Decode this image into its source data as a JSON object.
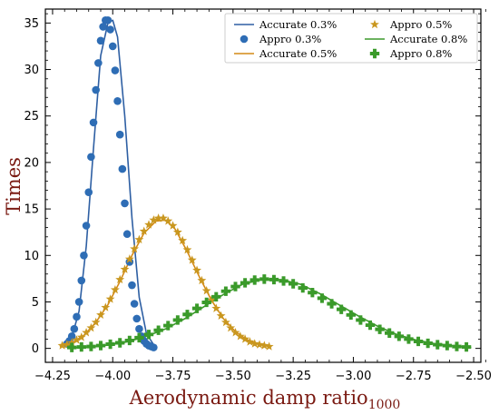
{
  "chart_data": {
    "type": "line",
    "title": "",
    "xlabel": "Aerodynamic damp ratio",
    "xlabel_subscript": "1000",
    "ylabel": "Times",
    "xlim": [
      -4.28,
      -2.47
    ],
    "ylim": [
      -1.5,
      36.5
    ],
    "xticks": [
      -4.25,
      -4.0,
      -3.75,
      -3.5,
      -3.25,
      -3.0,
      -2.75,
      -2.5
    ],
    "xtick_labels": [
      "−4.25",
      "−4.00",
      "−3.75",
      "−3.50",
      "−3.25",
      "−3.00",
      "−2.75",
      "−2.50"
    ],
    "yticks": [
      0,
      5,
      10,
      15,
      20,
      25,
      30,
      35
    ],
    "ytick_labels": [
      "0",
      "5",
      "10",
      "15",
      "20",
      "25",
      "30",
      "35"
    ],
    "grid": false,
    "legend_position": "top-right",
    "legend_columns": 2,
    "series": [
      {
        "name": "Accurate 0.3%",
        "kind": "line",
        "color": "#2e5fa3",
        "x": [
          -4.2,
          -4.17,
          -4.14,
          -4.11,
          -4.08,
          -4.05,
          -4.02,
          -4.0,
          -3.98,
          -3.95,
          -3.92,
          -3.89,
          -3.86,
          -3.83
        ],
        "y": [
          0.3,
          1.2,
          4.0,
          11.0,
          21.5,
          31.5,
          35.0,
          35.3,
          33.5,
          25.0,
          14.0,
          5.5,
          1.6,
          0.4
        ]
      },
      {
        "name": "Appro 0.3%",
        "kind": "marker",
        "marker": "circle",
        "color": "#2e6db5",
        "x": [
          -4.19,
          -4.18,
          -4.17,
          -4.16,
          -4.15,
          -4.14,
          -4.13,
          -4.12,
          -4.11,
          -4.1,
          -4.09,
          -4.08,
          -4.07,
          -4.06,
          -4.05,
          -4.04,
          -4.03,
          -4.02,
          -4.01,
          -4.0,
          -3.99,
          -3.98,
          -3.97,
          -3.96,
          -3.95,
          -3.94,
          -3.93,
          -3.92,
          -3.91,
          -3.9,
          -3.89,
          -3.88,
          -3.87,
          -3.86,
          -3.85,
          -3.84,
          -3.83
        ],
        "y": [
          0.5,
          0.8,
          1.3,
          2.1,
          3.4,
          5.0,
          7.3,
          10.0,
          13.2,
          16.8,
          20.6,
          24.3,
          27.8,
          30.7,
          33.1,
          34.6,
          35.3,
          35.3,
          34.3,
          32.5,
          29.9,
          26.6,
          23.0,
          19.3,
          15.6,
          12.3,
          9.3,
          6.8,
          4.8,
          3.2,
          2.1,
          1.3,
          0.8,
          0.5,
          0.3,
          0.2,
          0.1
        ]
      },
      {
        "name": "Accurate 0.5%",
        "kind": "line",
        "color": "#d48a16",
        "x": [
          -4.22,
          -4.17,
          -4.12,
          -4.07,
          -4.02,
          -3.97,
          -3.92,
          -3.87,
          -3.82,
          -3.78,
          -3.74,
          -3.69,
          -3.64,
          -3.59,
          -3.54,
          -3.49,
          -3.44,
          -3.39,
          -3.34
        ],
        "y": [
          0.2,
          0.6,
          1.4,
          2.8,
          4.7,
          7.2,
          10.0,
          12.4,
          13.7,
          13.8,
          12.8,
          10.4,
          7.7,
          5.2,
          3.2,
          1.8,
          0.9,
          0.4,
          0.2
        ]
      },
      {
        "name": "Appro 0.5%",
        "kind": "marker",
        "marker": "star",
        "color": "#c9971f",
        "x": [
          -4.21,
          -4.19,
          -4.17,
          -4.15,
          -4.13,
          -4.11,
          -4.09,
          -4.07,
          -4.05,
          -4.03,
          -4.01,
          -3.99,
          -3.97,
          -3.95,
          -3.93,
          -3.91,
          -3.89,
          -3.87,
          -3.85,
          -3.83,
          -3.81,
          -3.79,
          -3.77,
          -3.75,
          -3.73,
          -3.71,
          -3.69,
          -3.67,
          -3.65,
          -3.63,
          -3.61,
          -3.59,
          -3.57,
          -3.55,
          -3.53,
          -3.51,
          -3.49,
          -3.47,
          -3.45,
          -3.43,
          -3.41,
          -3.39,
          -3.37,
          -3.35
        ],
        "y": [
          0.3,
          0.4,
          0.6,
          0.9,
          1.2,
          1.7,
          2.2,
          2.8,
          3.6,
          4.4,
          5.3,
          6.3,
          7.4,
          8.5,
          9.6,
          10.7,
          11.7,
          12.6,
          13.3,
          13.8,
          14.0,
          14.0,
          13.7,
          13.2,
          12.5,
          11.6,
          10.6,
          9.5,
          8.4,
          7.3,
          6.2,
          5.2,
          4.3,
          3.5,
          2.8,
          2.2,
          1.7,
          1.3,
          1.0,
          0.7,
          0.5,
          0.4,
          0.3,
          0.2
        ]
      },
      {
        "name": "Accurate 0.8%",
        "kind": "line",
        "color": "#3d9a2c",
        "x": [
          -4.18,
          -4.1,
          -4.02,
          -3.94,
          -3.86,
          -3.78,
          -3.7,
          -3.62,
          -3.54,
          -3.46,
          -3.38,
          -3.3,
          -3.22,
          -3.14,
          -3.06,
          -2.98,
          -2.9,
          -2.82,
          -2.74,
          -2.66,
          -2.58,
          -2.51
        ],
        "y": [
          0.05,
          0.15,
          0.35,
          0.7,
          1.3,
          2.1,
          3.2,
          4.5,
          5.8,
          6.9,
          7.4,
          7.4,
          6.9,
          5.9,
          4.7,
          3.5,
          2.4,
          1.5,
          0.9,
          0.5,
          0.25,
          0.1
        ]
      },
      {
        "name": "Appro 0.8%",
        "kind": "marker",
        "marker": "plus",
        "color": "#3a9a2a",
        "x": [
          -4.17,
          -4.13,
          -4.09,
          -4.05,
          -4.01,
          -3.97,
          -3.93,
          -3.89,
          -3.85,
          -3.81,
          -3.77,
          -3.73,
          -3.69,
          -3.65,
          -3.61,
          -3.57,
          -3.53,
          -3.49,
          -3.45,
          -3.41,
          -3.37,
          -3.33,
          -3.29,
          -3.25,
          -3.21,
          -3.17,
          -3.13,
          -3.09,
          -3.05,
          -3.01,
          -2.97,
          -2.93,
          -2.89,
          -2.85,
          -2.81,
          -2.77,
          -2.73,
          -2.69,
          -2.65,
          -2.61,
          -2.57,
          -2.53
        ],
        "y": [
          0.1,
          0.15,
          0.2,
          0.3,
          0.45,
          0.6,
          0.85,
          1.15,
          1.5,
          1.95,
          2.45,
          3.05,
          3.65,
          4.3,
          4.95,
          5.55,
          6.15,
          6.65,
          7.05,
          7.35,
          7.45,
          7.4,
          7.25,
          6.95,
          6.5,
          6.0,
          5.4,
          4.8,
          4.2,
          3.6,
          3.05,
          2.5,
          2.05,
          1.65,
          1.3,
          1.0,
          0.75,
          0.55,
          0.4,
          0.3,
          0.2,
          0.15
        ]
      }
    ]
  }
}
